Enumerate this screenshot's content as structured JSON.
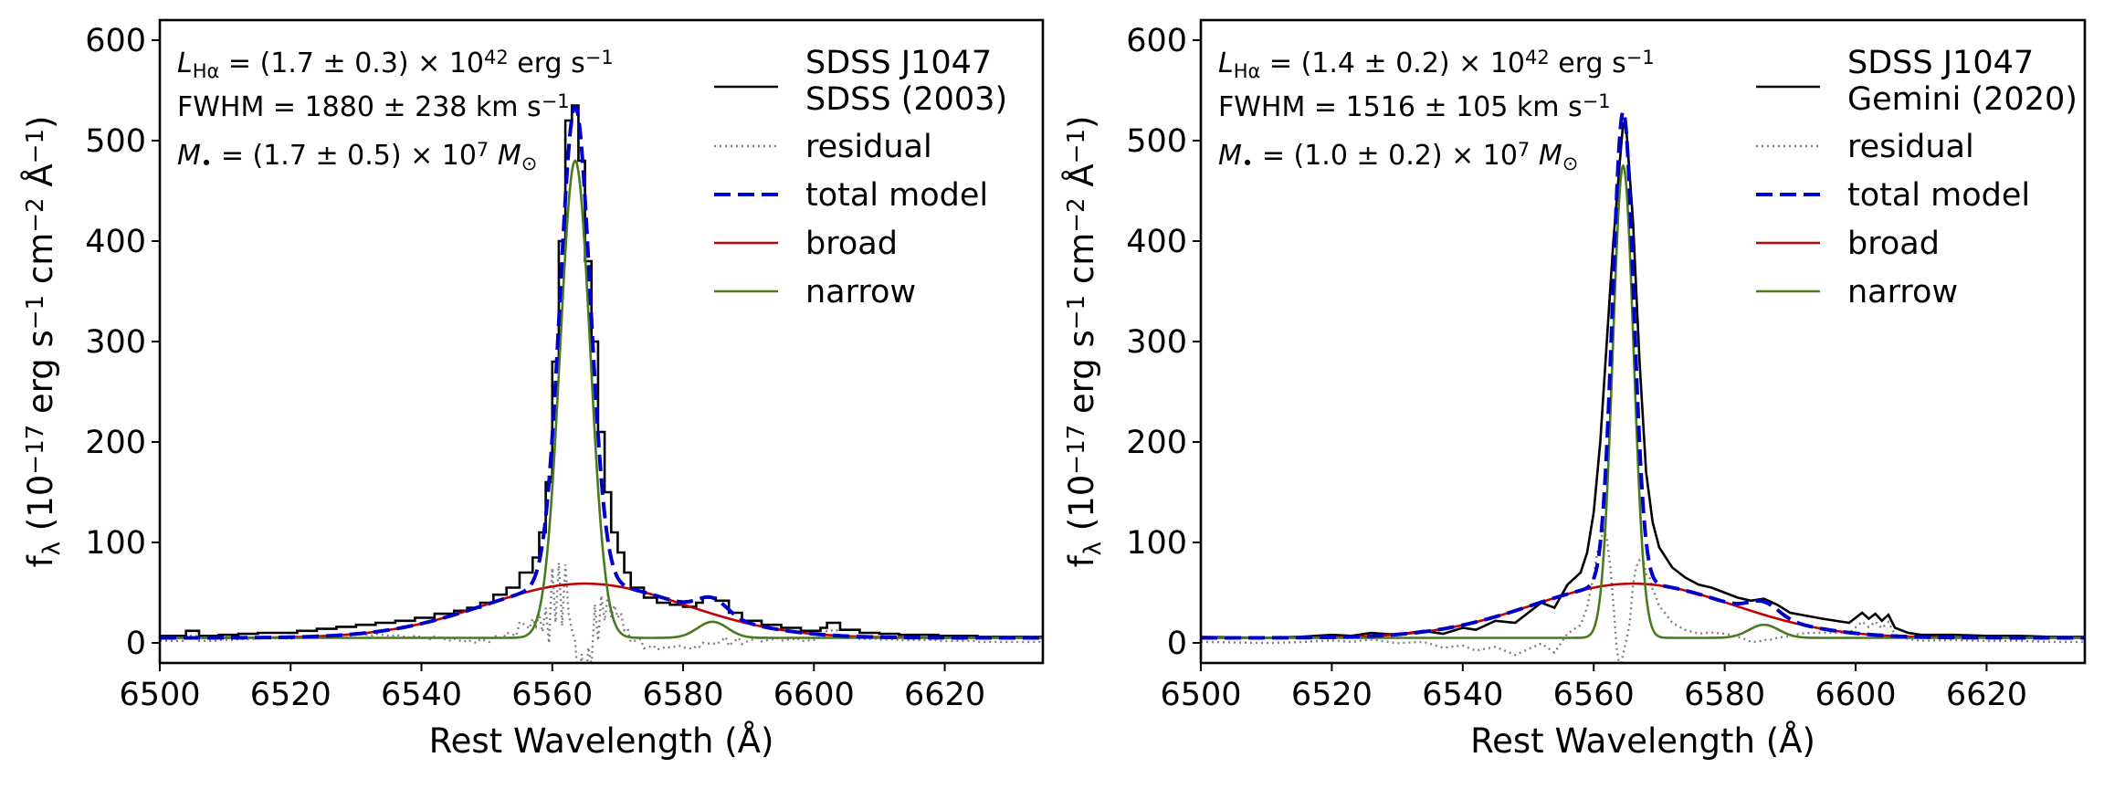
{
  "chart_data": [
    {
      "type": "line",
      "xlabel": "Rest Wavelength (Å)",
      "ylabel": "f_λ (10^-17 erg s^-1 cm^-2 Å^-1)",
      "xlim": [
        6500,
        6635
      ],
      "ylim": [
        -20,
        620
      ],
      "x_ticks": [
        6500,
        6520,
        6540,
        6560,
        6580,
        6600,
        6620
      ],
      "y_ticks": [
        0,
        100,
        200,
        300,
        400,
        500,
        600
      ],
      "annotations": {
        "L": {
          "prefix": "L",
          "sub": "Hα",
          "value": " = (1.7 ± 0.3) × 10",
          "exp": "42",
          "unit": " erg s",
          "unit_exp": "−1"
        },
        "F": {
          "value": "FWHM = 1880 ± 238 km s",
          "exp": "−1"
        },
        "M": {
          "prefix": "M",
          "sub": "•",
          "value": " = (1.7 ± 0.5) × 10",
          "exp": "7",
          "unit": " M",
          "unit_sub": "⊙"
        }
      },
      "legend_position": "top-right",
      "legend": [
        "SDSS J1047",
        "SDSS (2003)",
        "residual",
        "total model",
        "broad",
        "narrow"
      ],
      "colors": {
        "data": "#000000",
        "residual": "#808080",
        "total": "#0000cc",
        "broad": "#c00000",
        "narrow": "#4a7a1e"
      },
      "model": {
        "narrow_center": 6563.5,
        "narrow_sigma": 2.3,
        "narrow_amp": 475,
        "broad_center": 6565,
        "broad_fwhm": 36,
        "broad_amp": 54,
        "nii_center": 6584.5,
        "nii_amp": 16,
        "continuum": 5
      },
      "series": [
        {
          "name": "SDSS J1047 SDSS (2003)",
          "style": "step",
          "x": [
            6500,
            6503,
            6504,
            6506,
            6509,
            6512,
            6515,
            6518,
            6521,
            6524,
            6527,
            6530,
            6533,
            6536,
            6539,
            6542,
            6545,
            6547,
            6549,
            6551,
            6553,
            6555,
            6557,
            6558,
            6559,
            6560,
            6561,
            6562,
            6563,
            6564,
            6565,
            6566,
            6567,
            6568,
            6569,
            6570,
            6571,
            6572,
            6574,
            6576,
            6578,
            6580,
            6582,
            6583,
            6585,
            6587,
            6589,
            6592,
            6595,
            6598,
            6601,
            6602,
            6604,
            6607,
            6610,
            6613,
            6616,
            6619,
            6622,
            6625,
            6628,
            6631,
            6634
          ],
          "y": [
            7,
            7,
            12,
            7,
            8,
            9,
            10,
            10,
            12,
            14,
            16,
            18,
            20,
            22,
            25,
            29,
            32,
            35,
            40,
            48,
            55,
            70,
            85,
            110,
            160,
            280,
            400,
            520,
            535,
            480,
            380,
            300,
            210,
            150,
            110,
            90,
            70,
            55,
            45,
            40,
            38,
            36,
            40,
            45,
            42,
            30,
            22,
            18,
            15,
            12,
            15,
            20,
            13,
            10,
            9,
            8,
            8,
            7,
            7,
            6,
            6,
            6,
            6
          ]
        },
        {
          "name": "residual",
          "style": "dotted"
        },
        {
          "name": "total model",
          "style": "dashed"
        },
        {
          "name": "broad",
          "style": "solid"
        },
        {
          "name": "narrow",
          "style": "solid"
        }
      ]
    },
    {
      "type": "line",
      "xlabel": "Rest Wavelength (Å)",
      "ylabel": "f_λ (10^-17 erg s^-1 cm^-2 Å^-1)",
      "xlim": [
        6500,
        6635
      ],
      "ylim": [
        -20,
        620
      ],
      "x_ticks": [
        6500,
        6520,
        6540,
        6560,
        6580,
        6600,
        6620
      ],
      "y_ticks": [
        0,
        100,
        200,
        300,
        400,
        500,
        600
      ],
      "annotations": {
        "L": {
          "prefix": "L",
          "sub": "Hα",
          "value": " = (1.4 ± 0.2) × 10",
          "exp": "42",
          "unit": " erg s",
          "unit_exp": "−1"
        },
        "F": {
          "value": "FWHM = 1516 ± 105 km s",
          "exp": "−1"
        },
        "M": {
          "prefix": "M",
          "sub": "•",
          "value": " = (1.0 ± 0.2) × 10",
          "exp": "7",
          "unit": " M",
          "unit_sub": "⊙"
        }
      },
      "legend_position": "top-right",
      "legend": [
        "SDSS J1047",
        "Gemini (2020)",
        "residual",
        "total model",
        "broad",
        "narrow"
      ],
      "colors": {
        "data": "#000000",
        "residual": "#808080",
        "total": "#0000cc",
        "broad": "#c00000",
        "narrow": "#4a7a1e"
      },
      "model": {
        "narrow_center": 6564.5,
        "narrow_sigma": 1.6,
        "narrow_amp": 470,
        "broad_center": 6566,
        "broad_fwhm": 36,
        "broad_amp": 54,
        "nii_center": 6586,
        "nii_amp": 13,
        "continuum": 5
      },
      "series": [
        {
          "name": "SDSS J1047 Gemini (2020)",
          "style": "line",
          "x": [
            6500,
            6510,
            6515,
            6520,
            6523,
            6526,
            6530,
            6534,
            6537,
            6540,
            6542,
            6545,
            6548,
            6550,
            6552,
            6554,
            6556,
            6558,
            6559,
            6560,
            6561,
            6562,
            6563,
            6564,
            6564.5,
            6565,
            6566,
            6567,
            6568,
            6569,
            6570,
            6572,
            6574,
            6576,
            6578,
            6580,
            6582,
            6584,
            6586,
            6588,
            6590,
            6595,
            6599,
            6601,
            6602,
            6603,
            6604,
            6605,
            6606,
            6608,
            6610,
            6615,
            6620,
            6625,
            6630,
            6635
          ],
          "y": [
            6,
            5,
            6,
            8,
            7,
            10,
            8,
            12,
            9,
            15,
            13,
            22,
            20,
            30,
            40,
            35,
            58,
            70,
            90,
            130,
            200,
            300,
            400,
            480,
            518,
            510,
            420,
            280,
            170,
            120,
            95,
            75,
            65,
            58,
            55,
            50,
            45,
            42,
            44,
            38,
            30,
            24,
            20,
            30,
            24,
            29,
            22,
            28,
            15,
            10,
            8,
            8,
            7,
            7,
            6,
            6
          ]
        },
        {
          "name": "residual",
          "style": "dotted"
        },
        {
          "name": "total model",
          "style": "dashed"
        },
        {
          "name": "broad",
          "style": "solid"
        },
        {
          "name": "narrow",
          "style": "solid"
        }
      ]
    }
  ]
}
